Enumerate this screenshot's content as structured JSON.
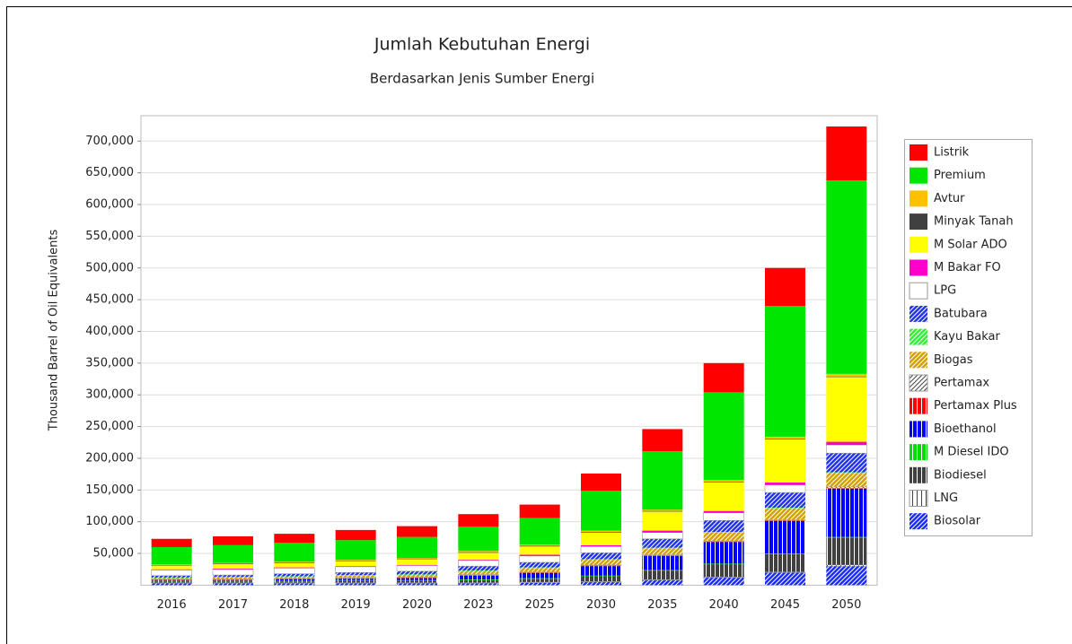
{
  "chart_data": {
    "type": "stacked_bar",
    "title": "Jumlah Kebutuhan Energi",
    "subtitle": "Berdasarkan Jenis Sumber Energi",
    "y_label": "Thousand Barrel of Oil Equivalents",
    "categories": [
      "2016",
      "2017",
      "2018",
      "2019",
      "2020",
      "2023",
      "2025",
      "2030",
      "2035",
      "2040",
      "2045",
      "2050"
    ],
    "ylim": [
      0,
      740000
    ],
    "yticks": [
      {
        "value": 50000,
        "label": "50,000"
      },
      {
        "value": 100000,
        "label": "100,000"
      },
      {
        "value": 150000,
        "label": "150,000"
      },
      {
        "value": 200000,
        "label": "200,000"
      },
      {
        "value": 250000,
        "label": "250,000"
      },
      {
        "value": 300000,
        "label": "300,000"
      },
      {
        "value": 350000,
        "label": "350,000"
      },
      {
        "value": 400000,
        "label": "400,000"
      },
      {
        "value": 450000,
        "label": "450,000"
      },
      {
        "value": 500000,
        "label": "500,000"
      },
      {
        "value": 550000,
        "label": "550,000"
      },
      {
        "value": 600000,
        "label": "600,000"
      },
      {
        "value": 650000,
        "label": "650,000"
      },
      {
        "value": 700000,
        "label": "700,000"
      }
    ],
    "grid": true,
    "legend": "right",
    "series": [
      {
        "name": "Biosolar",
        "color": "#1a2bff",
        "pattern": "diagonal",
        "values": [
          3000,
          3000,
          3000,
          3000,
          3000,
          3000,
          4000,
          5000,
          8000,
          12000,
          20000,
          30000
        ]
      },
      {
        "name": "LNG",
        "color": "#ffffff",
        "pattern": "vertical",
        "values": [
          1000,
          1000,
          1000,
          1000,
          1000,
          1000,
          1000,
          1000,
          1000,
          1000,
          1000,
          2000
        ]
      },
      {
        "name": "Biodiesel",
        "color": "#404040",
        "pattern": "vertical",
        "values": [
          2000,
          2000,
          2000,
          3000,
          3000,
          4000,
          5000,
          8000,
          14000,
          20000,
          28000,
          43000
        ]
      },
      {
        "name": "M Diesel IDO",
        "color": "#00dd00",
        "pattern": "vertical",
        "values": [
          1000,
          1000,
          1000,
          1000,
          1000,
          1000,
          1000,
          1000,
          1000,
          1000,
          1000,
          1000
        ]
      },
      {
        "name": "Bioethanol",
        "color": "#0000ff",
        "pattern": "vertical",
        "values": [
          1000,
          1000,
          2000,
          2000,
          3000,
          6000,
          8000,
          15000,
          22000,
          34000,
          51000,
          76000
        ]
      },
      {
        "name": "Pertamax Plus",
        "color": "#ff0000",
        "pattern": "vertical",
        "values": [
          1000,
          1000,
          1000,
          1000,
          1000,
          1000,
          1000,
          1000,
          1000,
          1000,
          1000,
          1000
        ]
      },
      {
        "name": "Pertamax",
        "color": "#ffffff",
        "pattern": "diagonal",
        "values": [
          1000,
          1000,
          1000,
          1000,
          1000,
          1000,
          1000,
          1000,
          1000,
          1000,
          1000,
          2000
        ]
      },
      {
        "name": "Biogas",
        "color": "#d4a000",
        "pattern": "diagonal",
        "values": [
          1000,
          2000,
          2000,
          3000,
          3000,
          5000,
          6000,
          8000,
          10000,
          13000,
          18000,
          22000
        ]
      },
      {
        "name": "Kayu Bakar",
        "color": "#33ee33",
        "pattern": "diagonal",
        "values": [
          1000,
          1000,
          1000,
          1000,
          1000,
          1000,
          1000,
          1000,
          1000,
          1000,
          1000,
          1000
        ]
      },
      {
        "name": "Batubara",
        "color": "#2233ee",
        "pattern": "diagonal",
        "values": [
          3000,
          3000,
          4000,
          4000,
          5000,
          7000,
          8000,
          10000,
          14000,
          18000,
          24000,
          30000
        ]
      },
      {
        "name": "LPG",
        "color": "#ffffff",
        "pattern": "solid",
        "values": [
          9000,
          9000,
          9000,
          9000,
          9000,
          9000,
          10000,
          10000,
          10000,
          12000,
          12000,
          13000
        ]
      },
      {
        "name": "M Bakar FO",
        "color": "#ff00cc",
        "pattern": "solid",
        "values": [
          1000,
          1000,
          1000,
          1000,
          1000,
          1000,
          2000,
          2000,
          3000,
          3000,
          4000,
          5000
        ]
      },
      {
        "name": "M Solar ADO",
        "color": "#ffff00",
        "pattern": "solid",
        "values": [
          6000,
          7000,
          7000,
          8000,
          9000,
          11000,
          13000,
          20000,
          30000,
          45000,
          68000,
          102000
        ]
      },
      {
        "name": "Minyak Tanah",
        "color": "#404040",
        "pattern": "solid",
        "values": [
          1000,
          1000,
          1000,
          1000,
          1000,
          1000,
          1000,
          1000,
          1000,
          1000,
          1000,
          1000
        ]
      },
      {
        "name": "Avtur",
        "color": "#ffc000",
        "pattern": "solid",
        "values": [
          1000,
          1000,
          1000,
          1000,
          1000,
          2000,
          2000,
          2000,
          2000,
          3000,
          3000,
          4000
        ]
      },
      {
        "name": "Premium",
        "color": "#00e600",
        "pattern": "solid",
        "values": [
          27000,
          28000,
          30000,
          31000,
          33000,
          38000,
          42000,
          63000,
          92000,
          138000,
          206000,
          305000
        ]
      },
      {
        "name": "Listrik",
        "color": "#ff0000",
        "pattern": "solid",
        "values": [
          13000,
          14000,
          14000,
          16000,
          17000,
          20000,
          21000,
          27000,
          35000,
          46000,
          60000,
          85000
        ]
      }
    ]
  }
}
